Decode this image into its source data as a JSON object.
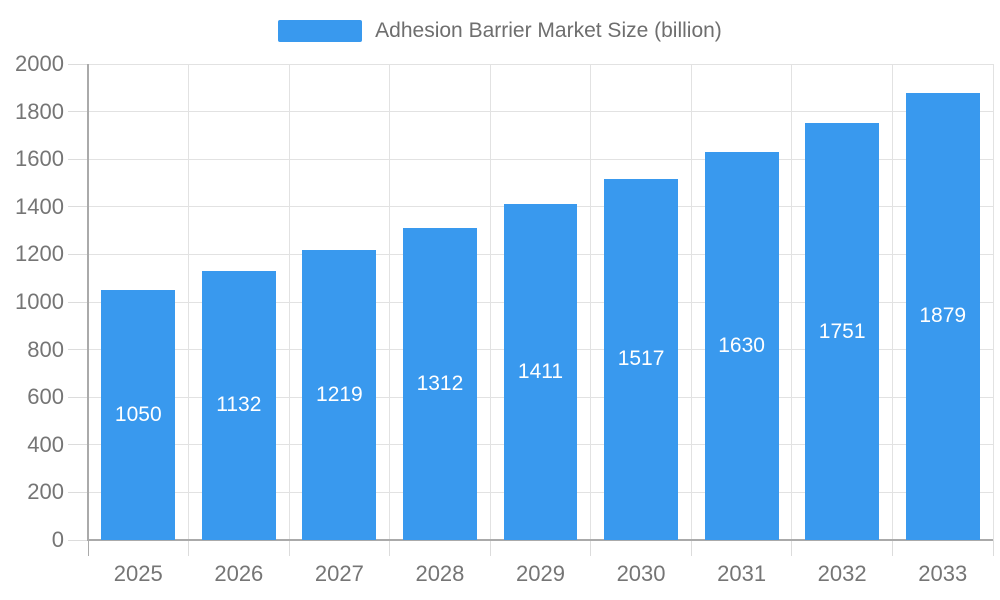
{
  "legend": {
    "label": "Adhesion Barrier Market Size (billion)"
  },
  "colors": {
    "bar": "#3999ee",
    "axis_label": "#757575",
    "legend_text": "#6e6e6e",
    "grid_line": "#e2e2e2",
    "axis_line": "#aaaaaa",
    "tick_line": "#dcdcdc",
    "value_label": "#ffffff",
    "background": "#ffffff"
  },
  "chart_data": {
    "type": "bar",
    "title": "Adhesion Barrier Market Size (billion)",
    "categories": [
      "2025",
      "2026",
      "2027",
      "2028",
      "2029",
      "2030",
      "2031",
      "2032",
      "2033"
    ],
    "values": [
      1050,
      1132,
      1219,
      1312,
      1411,
      1517,
      1630,
      1751,
      1879
    ],
    "series_name": "Adhesion Barrier Market Size (billion)",
    "xlabel": "",
    "ylabel": "",
    "ylim": [
      0,
      2000
    ],
    "ytick_interval": 200,
    "ytick_labels": [
      "0",
      "200",
      "400",
      "600",
      "800",
      "1000",
      "1200",
      "1400",
      "1600",
      "1800",
      "2000"
    ],
    "grid": true,
    "legend_position": "top-center",
    "value_label_position": "inside-center"
  }
}
